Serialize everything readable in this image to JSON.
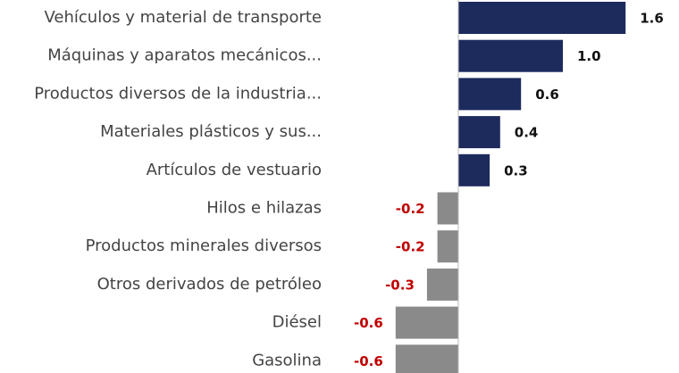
{
  "chart_data": {
    "type": "bar",
    "orientation": "horizontal",
    "categories": [
      "Vehículos y material de transporte",
      "Máquinas y aparatos mecánicos...",
      "Productos diversos de la industria...",
      "Materiales plásticos y sus...",
      "Artículos de vestuario",
      "Hilos e hilazas",
      "Productos minerales diversos",
      "Otros derivados de petróleo",
      "Diésel",
      "Gasolina"
    ],
    "values": [
      1.6,
      1.0,
      0.6,
      0.4,
      0.3,
      -0.2,
      -0.2,
      -0.3,
      -0.6,
      -0.6
    ],
    "value_labels": [
      "1.6",
      "1.0",
      "0.6",
      "0.4",
      "0.3",
      "-0.2",
      "-0.2",
      "-0.3",
      "-0.6",
      "-0.6"
    ],
    "positive_color": "#1d2a5c",
    "negative_color": "#8a8a8a",
    "positive_label_color": "#111111",
    "negative_label_color": "#c00000"
  }
}
